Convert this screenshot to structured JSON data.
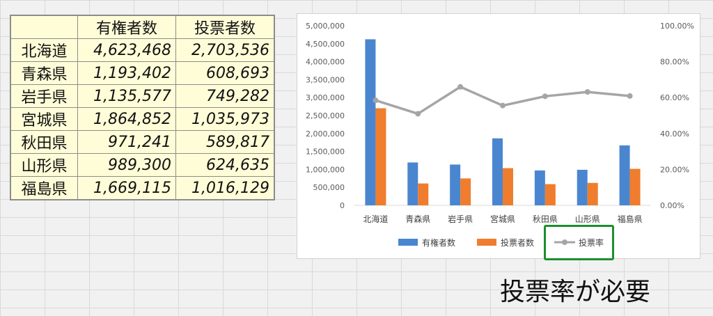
{
  "table": {
    "headers": [
      "有権者数",
      "投票者数"
    ],
    "rows": [
      {
        "name": "北海道",
        "voters": "4,623,468",
        "votes": "2,703,536"
      },
      {
        "name": "青森県",
        "voters": "1,193,402",
        "votes": "608,693"
      },
      {
        "name": "岩手県",
        "voters": "1,135,577",
        "votes": "749,282"
      },
      {
        "name": "宮城県",
        "voters": "1,864,852",
        "votes": "1,035,973"
      },
      {
        "name": "秋田県",
        "voters": "971,241",
        "votes": "589,817"
      },
      {
        "name": "山形県",
        "voters": "989,300",
        "votes": "624,635"
      },
      {
        "name": "福島県",
        "voters": "1,669,115",
        "votes": "1,016,129"
      }
    ]
  },
  "chart_data": {
    "type": "bar",
    "categories": [
      "北海道",
      "青森県",
      "岩手県",
      "宮城県",
      "秋田県",
      "山形県",
      "福島県"
    ],
    "series": [
      {
        "name": "有権者数",
        "kind": "bar",
        "axis": "left",
        "color": "#4a86d0",
        "values": [
          4623468,
          1193402,
          1135577,
          1864852,
          971241,
          989300,
          1669115
        ]
      },
      {
        "name": "投票者数",
        "kind": "bar",
        "axis": "left",
        "color": "#ef7d2d",
        "values": [
          2703536,
          608693,
          749282,
          1035973,
          589817,
          624635,
          1016129
        ]
      },
      {
        "name": "投票率",
        "kind": "line",
        "axis": "right",
        "color": "#a5a5a5",
        "values": [
          0.5847,
          0.51,
          0.6598,
          0.5555,
          0.6073,
          0.6314,
          0.6088
        ]
      }
    ],
    "ylim_left": [
      0,
      5000000
    ],
    "ylim_right": [
      0,
      1
    ],
    "y_ticks_left": [
      "0",
      "500,000",
      "1,000,000",
      "1,500,000",
      "2,000,000",
      "2,500,000",
      "3,000,000",
      "3,500,000",
      "4,000,000",
      "4,500,000",
      "5,000,000"
    ],
    "y_ticks_right": [
      "0.00%",
      "20.00%",
      "40.00%",
      "60.00%",
      "80.00%",
      "100.00%"
    ],
    "legend_position": "bottom",
    "grid": false
  },
  "annotation": "投票率が必要",
  "highlight_color": "#1a8f2c"
}
